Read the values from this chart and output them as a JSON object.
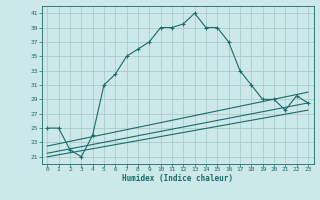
{
  "xlabel": "Humidex (Indice chaleur)",
  "ylabel": "",
  "bg_color": "#cce8e8",
  "grid_color": "#aacccc",
  "line_color": "#1a6b6b",
  "xlim": [
    -0.5,
    23.5
  ],
  "ylim": [
    20,
    42
  ],
  "yticks": [
    21,
    23,
    25,
    27,
    29,
    31,
    33,
    35,
    37,
    39,
    41
  ],
  "xticks": [
    0,
    1,
    2,
    3,
    4,
    5,
    6,
    7,
    8,
    9,
    10,
    11,
    12,
    13,
    14,
    15,
    16,
    17,
    18,
    19,
    20,
    21,
    22,
    23
  ],
  "series": [
    {
      "x": [
        0,
        1,
        2,
        3,
        4,
        5,
        6,
        7,
        8,
        9,
        10,
        11,
        12,
        13,
        14,
        15,
        16,
        17,
        18,
        19,
        20,
        21,
        22,
        23
      ],
      "y": [
        25,
        25,
        22,
        21,
        24,
        31,
        32.5,
        35,
        36,
        37,
        39,
        39,
        39.5,
        41,
        39,
        39,
        37,
        33,
        31,
        29,
        29,
        27.5,
        29.5,
        28.5
      ],
      "marker": true
    },
    {
      "x": [
        0,
        23
      ],
      "y": [
        22.5,
        30
      ],
      "marker": false
    },
    {
      "x": [
        0,
        23
      ],
      "y": [
        21.5,
        28.5
      ],
      "marker": false
    },
    {
      "x": [
        0,
        23
      ],
      "y": [
        21.0,
        27.5
      ],
      "marker": false
    }
  ]
}
